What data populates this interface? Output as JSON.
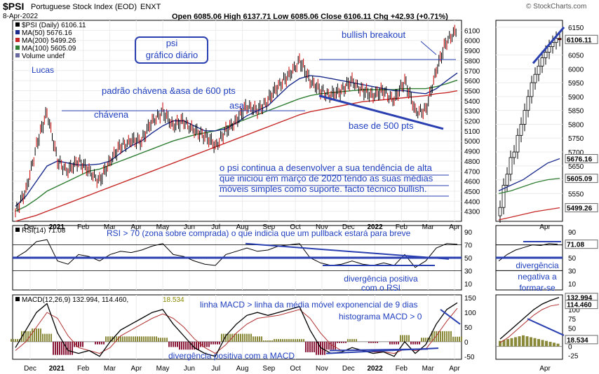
{
  "header": {
    "symbol": "$PSI",
    "name": "Portuguese Stock Index (EOD)",
    "exchange": "ENXT",
    "date": "8-Apr-2022",
    "ohlc": "Open 6085.06  High 6137.71  Low 6085.06  Close 6106.11  Chg +42.93 (+0.71%)",
    "watermark": "© StockCharts.com"
  },
  "legend": {
    "price": "$PSI (Daily) 6106.11",
    "ma50": "MA(50) 5676.16",
    "ma200": "MA(200) 5499.26",
    "ma100": "MA(100) 5605.09",
    "volume": "Volume undef"
  },
  "annotations": {
    "box_title_1": "psi",
    "box_title_2": "gráfico diário",
    "author": "Lucas",
    "pattern": "padrão chávena &asa de 600 pts",
    "cup": "chávena",
    "handle": "asa",
    "breakout": "bullish breakout",
    "base": "base de 500 pts",
    "comment_1": "o psi continua a desenvolver a sua tendência de alta",
    "comment_2": "que iniciou em março de 2020 tendo as suas médias",
    "comment_3": "móveis simples como suporte. facto técnico bullish.",
    "rsi_note": "RSI > 70 (zona sobre comprada) o que indicia que um pullback estará para breve",
    "rsi_div_1": "divergência positiva",
    "rsi_div_2": "com o RSI",
    "rsi_neg_1": "divergência",
    "rsi_neg_2": "negativa a",
    "rsi_neg_3": "formar-se",
    "macd_note_1": "linha MACD > linha da média móvel exponencial de 9 dias",
    "macd_note_2": "histograma MACD > 0",
    "macd_div": "divergência positiva com a MACD"
  },
  "rsi_legend": "RSI(14) 71.08",
  "macd_legend_label": "MACD(12,26,9) 132.994, 114.460,",
  "macd_legend_hist": "18.534",
  "price_axis": [
    "6100",
    "6000",
    "5900",
    "5800",
    "5700",
    "5600",
    "5500",
    "5400",
    "5300",
    "5200",
    "5100",
    "5000",
    "4900",
    "4800",
    "4700",
    "4600",
    "4500",
    "4400",
    "4300"
  ],
  "mini_axis": [
    "6150",
    "6050",
    "6000",
    "5950",
    "5900",
    "5850",
    "5800",
    "5750",
    "5700",
    "5650",
    "5600",
    "5550"
  ],
  "mini_tags": {
    "close": "6106.11",
    "ma50": "5676.16",
    "ma100": "5605.09",
    "ma200": "5499.26"
  },
  "rsi_axis": [
    "90",
    "70",
    "50",
    "30",
    "10"
  ],
  "mini_rsi_axis": [
    "90",
    "70",
    "50",
    "30",
    "10"
  ],
  "mini_rsi_tag": "71.08",
  "macd_axis": [
    "150",
    "100",
    "50",
    "0",
    "-50"
  ],
  "mini_macd_axis": [
    "125",
    "100",
    "75",
    "50",
    "25",
    "0",
    "-25"
  ],
  "mini_macd_tags": {
    "macd": "132.994",
    "signal": "114.460",
    "hist": "18.534"
  },
  "x_labels": [
    "Dec",
    "2021",
    "Feb",
    "Mar",
    "Apr",
    "May",
    "Jun",
    "Jul",
    "Aug",
    "Sep",
    "Oct",
    "Nov",
    "Dec",
    "2022",
    "Feb",
    "Mar",
    "Apr"
  ],
  "mini_x_label": "Apr",
  "colors": {
    "price": "#000000",
    "ma50": "#1a2b8c",
    "ma100": "#2e7d32",
    "ma200": "#c62828",
    "annotation": "#2a3fb0",
    "rsi_ref": "#2a3fb0",
    "hist": "#8b1a3a",
    "hist_pos": "#8a8a3a",
    "signal": "#b03030",
    "text_blue": "#1f3fbf"
  },
  "chart_data": [
    {
      "type": "line",
      "title": "$PSI Portuguese Stock Index (EOD) ENXT",
      "series": [
        {
          "name": "$PSI (Daily)",
          "values": [
            4300,
            4500,
            4950,
            5290,
            4800,
            4700,
            4800,
            4700,
            4600,
            4800,
            4950,
            5000,
            5000,
            5200,
            5290,
            5150,
            5200,
            5100,
            5050,
            4950,
            5100,
            5200,
            5350,
            5300,
            5400,
            5550,
            5650,
            5800,
            5600,
            5500,
            5450,
            5500,
            5600,
            5500,
            5450,
            5500,
            5400,
            5600,
            5300,
            5300,
            5700,
            6000,
            6106
          ]
        },
        {
          "name": "MA(50)",
          "values": [
            4350,
            4450,
            4600,
            4750,
            4800,
            4780,
            4760,
            4760,
            4770,
            4800,
            4880,
            4950,
            5000,
            5080,
            5150,
            5200,
            5200,
            5150,
            5100,
            5100,
            5120,
            5180,
            5250,
            5300,
            5350,
            5450,
            5550,
            5620,
            5650,
            5640,
            5620,
            5600,
            5580,
            5560,
            5540,
            5520,
            5500,
            5500,
            5480,
            5470,
            5520,
            5600,
            5676
          ]
        },
        {
          "name": "MA(100)",
          "values": [
            4300,
            4350,
            4420,
            4500,
            4550,
            4600,
            4650,
            4700,
            4720,
            4760,
            4800,
            4840,
            4880,
            4920,
            4960,
            5000,
            5030,
            5060,
            5080,
            5100,
            5140,
            5180,
            5220,
            5260,
            5300,
            5340,
            5380,
            5420,
            5450,
            5470,
            5480,
            5490,
            5500,
            5510,
            5510,
            5510,
            5510,
            5520,
            5520,
            5520,
            5540,
            5570,
            5605
          ]
        },
        {
          "name": "MA(200)",
          "values": [
            4200,
            4230,
            4260,
            4300,
            4340,
            4380,
            4420,
            4460,
            4500,
            4540,
            4580,
            4620,
            4660,
            4700,
            4740,
            4780,
            4820,
            4860,
            4900,
            4940,
            4980,
            5020,
            5060,
            5100,
            5140,
            5180,
            5220,
            5260,
            5290,
            5310,
            5330,
            5350,
            5370,
            5390,
            5400,
            5410,
            5420,
            5430,
            5440,
            5450,
            5470,
            5480,
            5499
          ]
        }
      ],
      "x_ticks": [
        "Dec",
        "2021",
        "Feb",
        "Mar",
        "Apr",
        "May",
        "Jun",
        "Jul",
        "Aug",
        "Sep",
        "Oct",
        "Nov",
        "Dec",
        "2022",
        "Feb",
        "Mar",
        "Apr"
      ],
      "ylim": [
        4200,
        6200
      ]
    },
    {
      "type": "line",
      "title": "RSI(14) 71.08",
      "series": [
        {
          "name": "RSI(14)",
          "values": [
            50,
            60,
            75,
            78,
            45,
            40,
            55,
            52,
            45,
            55,
            60,
            58,
            62,
            68,
            72,
            55,
            52,
            45,
            40,
            38,
            55,
            60,
            65,
            60,
            62,
            68,
            70,
            72,
            50,
            42,
            38,
            40,
            45,
            40,
            38,
            42,
            38,
            55,
            35,
            45,
            65,
            72,
            71
          ]
        }
      ],
      "ylim": [
        0,
        100
      ],
      "reference_lines": [
        70,
        50
      ]
    },
    {
      "type": "line",
      "title": "MACD(12,26,9) 132.994, 114.460, 18.534",
      "series": [
        {
          "name": "MACD",
          "values": [
            -20,
            40,
            100,
            130,
            30,
            -30,
            -40,
            -30,
            -50,
            0,
            40,
            60,
            80,
            100,
            110,
            60,
            20,
            -20,
            -40,
            -50,
            20,
            60,
            90,
            100,
            90,
            100,
            110,
            120,
            40,
            -20,
            -40,
            -35,
            -20,
            -30,
            -40,
            -35,
            -50,
            0,
            -40,
            -10,
            60,
            110,
            133
          ]
        },
        {
          "name": "Signal",
          "values": [
            -30,
            0,
            50,
            100,
            80,
            20,
            -20,
            -30,
            -40,
            -20,
            20,
            40,
            60,
            80,
            95,
            80,
            50,
            10,
            -20,
            -40,
            -10,
            30,
            60,
            80,
            85,
            90,
            100,
            110,
            80,
            30,
            -10,
            -30,
            -30,
            -30,
            -35,
            -35,
            -40,
            -25,
            -30,
            -25,
            20,
            70,
            114
          ]
        }
      ],
      "ylim": [
        -60,
        160
      ]
    }
  ]
}
